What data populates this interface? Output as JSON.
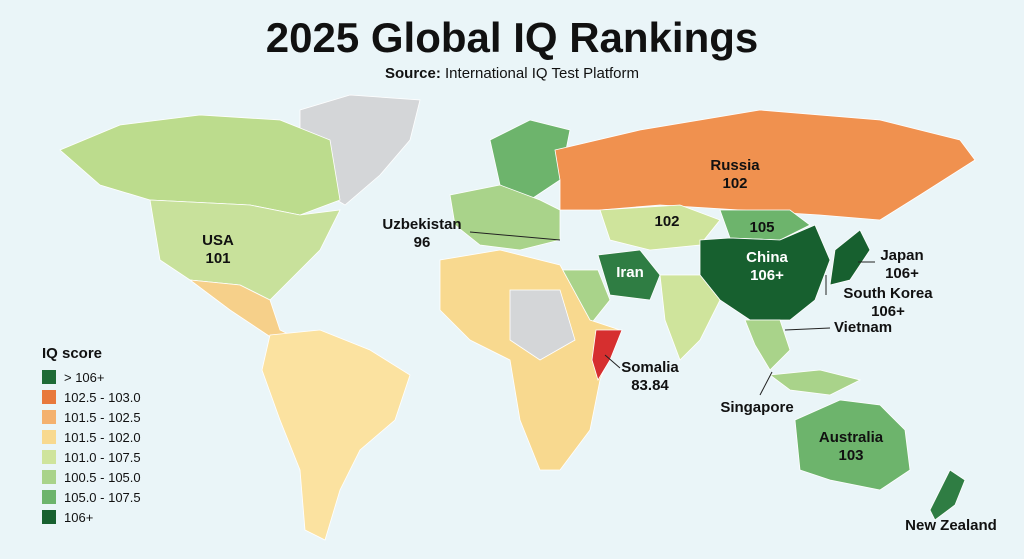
{
  "header": {
    "title": "2025 Global IQ Rankings",
    "source_label": "Source:",
    "source": "International IQ Test Platform"
  },
  "labels": {
    "russia": {
      "name": "Russia",
      "value": "102"
    },
    "usa": {
      "name": "USA",
      "value": "101"
    },
    "uzbekistan": {
      "name": "Uzbekistan",
      "value": "96"
    },
    "central_asia": {
      "value": "102"
    },
    "mongolia": {
      "value": "105"
    },
    "china": {
      "name": "China",
      "value": "106+"
    },
    "iran": {
      "name": "Iran"
    },
    "japan": {
      "name": "Japan",
      "value": "106+"
    },
    "south_korea": {
      "name": "South Korea",
      "value": "106+"
    },
    "vietnam": {
      "name": "Vietnam"
    },
    "somalia": {
      "name": "Somalia",
      "value": "83.84"
    },
    "singapore": {
      "name": "Singapore"
    },
    "australia": {
      "name": "Australia",
      "value": "103"
    },
    "new_zealand": {
      "name": "New Zealand"
    }
  },
  "legend": {
    "title": "IQ score",
    "items": [
      {
        "label": "> 106+",
        "color": "#1f6b36"
      },
      {
        "label": "102.5 - 103.0",
        "color": "#e8793c"
      },
      {
        "label": "101.5 - 102.5",
        "color": "#f4b16e"
      },
      {
        "label": "101.5 - 102.0",
        "color": "#f8d98f"
      },
      {
        "label": "101.0 - 107.5",
        "color": "#cfe49c"
      },
      {
        "label": "100.5 - 105.0",
        "color": "#a9d38a"
      },
      {
        "label": "105.0 - 107.5",
        "color": "#6db46c"
      },
      {
        "label": "106+",
        "color": "#17602f"
      }
    ]
  }
}
